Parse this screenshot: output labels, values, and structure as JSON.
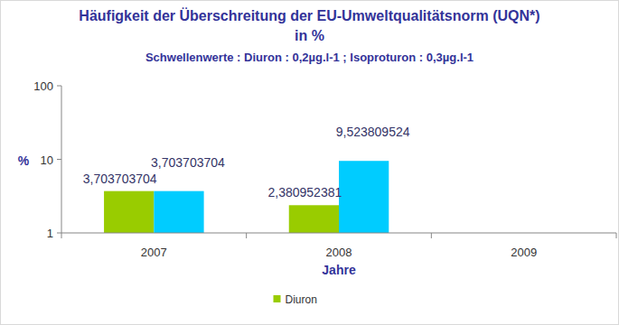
{
  "chart_data": {
    "type": "bar",
    "title": "Häufigkeit der Überschreitung der EU-Umweltqualitätsnorm (UQN*)\nin %",
    "subtitle": "Schwellenwerte : Diuron : 0,2µg.l-1 ; Isoproturon : 0,3µg.l-1",
    "x_label": "Jahre",
    "y_label": "%",
    "categories": [
      "2007",
      "2008",
      "2009"
    ],
    "series": [
      {
        "name": "Diuron",
        "color": "#99cc00",
        "values": [
          3.703703704,
          2.380952381,
          null
        ],
        "value_labels": [
          "3,703703704",
          "2,380952381",
          null
        ]
      },
      {
        "color": "#00ccff",
        "values": [
          3.703703704,
          9.523809524,
          null
        ],
        "value_labels": [
          "3,703703704",
          "9,523809524",
          null
        ]
      }
    ],
    "ylim": [
      1,
      100
    ],
    "yticks": [
      1,
      10,
      100
    ],
    "log": "y",
    "grid": false,
    "legend": "bottom",
    "data_labels": true
  }
}
